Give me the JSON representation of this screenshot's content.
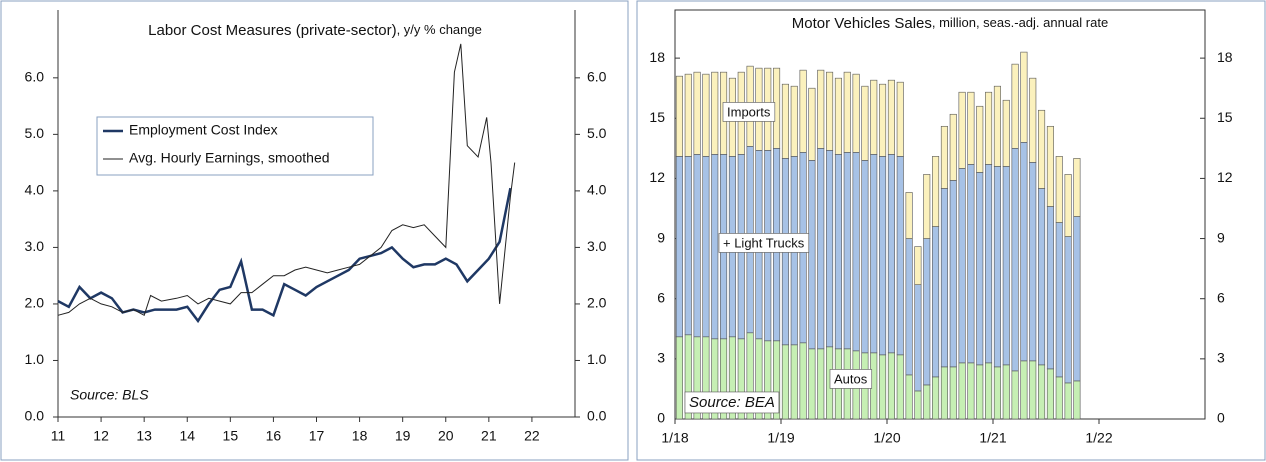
{
  "chart_data": [
    {
      "type": "line",
      "title": "Labor Cost Measures (private-sector)",
      "subtitle": ", y/y % change",
      "annotations": [
        "Source: BLS"
      ],
      "legend": "upper left",
      "xlim": [
        11,
        23
      ],
      "xticks": [
        11,
        12,
        13,
        14,
        15,
        16,
        17,
        18,
        19,
        20,
        21,
        22
      ],
      "ylim": [
        0,
        7.2
      ],
      "yticks": [
        {
          "value": 0,
          "label": "0.0"
        },
        {
          "value": 1,
          "label": "1.0"
        },
        {
          "value": 2,
          "label": "2.0"
        },
        {
          "value": 3,
          "label": "3.0"
        },
        {
          "value": 4,
          "label": "4.0"
        },
        {
          "value": 5,
          "label": "5.0"
        },
        {
          "value": 6,
          "label": "6.0"
        }
      ],
      "y2lim": [
        0,
        7.2
      ],
      "y2ticks": [
        {
          "value": 0,
          "label": "0.0"
        },
        {
          "value": 1,
          "label": "1.0"
        },
        {
          "value": 2,
          "label": "2.0"
        },
        {
          "value": 3,
          "label": "3.0"
        },
        {
          "value": 4,
          "label": "4.0"
        },
        {
          "value": 5,
          "label": "5.0"
        },
        {
          "value": 6,
          "label": "6.0"
        }
      ],
      "series": [
        {
          "name": "Employment Cost Index",
          "color": "#1f3864",
          "width": 2.5,
          "x": [
            11,
            11.25,
            11.5,
            11.75,
            12,
            12.25,
            12.5,
            12.75,
            13,
            13.25,
            13.5,
            13.75,
            14,
            14.25,
            14.5,
            14.75,
            15,
            15.25,
            15.5,
            15.75,
            16,
            16.25,
            16.5,
            16.75,
            17,
            17.25,
            17.5,
            17.75,
            18,
            18.25,
            18.5,
            18.75,
            19,
            19.25,
            19.5,
            19.75,
            20,
            20.25,
            20.5,
            20.75,
            21,
            21.25,
            21.5
          ],
          "values": [
            2.05,
            1.95,
            2.3,
            2.1,
            2.2,
            2.1,
            1.85,
            1.9,
            1.85,
            1.9,
            1.9,
            1.9,
            1.95,
            1.7,
            2.0,
            2.25,
            2.3,
            2.75,
            1.9,
            1.9,
            1.8,
            2.35,
            2.25,
            2.15,
            2.3,
            2.4,
            2.5,
            2.6,
            2.8,
            2.85,
            2.9,
            3.0,
            2.8,
            2.65,
            2.7,
            2.7,
            2.8,
            2.7,
            2.4,
            2.6,
            2.8,
            3.1,
            4.05
          ]
        },
        {
          "name": "Avg. Hourly Earnings, smoothed",
          "color": "#222222",
          "width": 1,
          "x": [
            11,
            11.25,
            11.5,
            11.75,
            12,
            12.25,
            12.5,
            12.75,
            13,
            13.15,
            13.4,
            13.75,
            14,
            14.25,
            14.5,
            14.75,
            15,
            15.25,
            15.5,
            15.75,
            16,
            16.25,
            16.5,
            16.75,
            17,
            17.25,
            17.5,
            17.75,
            18,
            18.5,
            18.75,
            19,
            19.25,
            19.5,
            19.75,
            20,
            20.2,
            20.35,
            20.5,
            20.75,
            20.95,
            21.05,
            21.25,
            21.5,
            21.6
          ],
          "values": [
            1.8,
            1.85,
            2.0,
            2.1,
            2.0,
            1.95,
            1.85,
            1.9,
            1.8,
            2.15,
            2.05,
            2.1,
            2.15,
            2.0,
            2.1,
            2.05,
            2.0,
            2.2,
            2.2,
            2.35,
            2.5,
            2.5,
            2.6,
            2.65,
            2.6,
            2.55,
            2.6,
            2.65,
            2.7,
            3.0,
            3.3,
            3.4,
            3.35,
            3.4,
            3.2,
            3.0,
            6.1,
            6.6,
            4.8,
            4.6,
            5.3,
            4.5,
            2.0,
            3.9,
            4.5
          ]
        }
      ]
    },
    {
      "type": "stacked-bar",
      "title": "Motor Vehicles Sales",
      "subtitle": ", million, seas.-adj. annual rate",
      "annotations": [
        "Imports",
        "+ Light Trucks",
        "Autos",
        "Source: BEA"
      ],
      "categories": [
        "1/18",
        null,
        null,
        null,
        null,
        null,
        null,
        null,
        null,
        null,
        null,
        null,
        "1/19",
        null,
        null,
        null,
        null,
        null,
        null,
        null,
        null,
        null,
        null,
        null,
        "1/20",
        null,
        null,
        null,
        null,
        null,
        null,
        null,
        null,
        null,
        null,
        null,
        "1/21",
        null,
        null,
        null,
        null,
        null,
        null,
        null,
        null,
        null,
        null,
        null,
        "1/22",
        null,
        null,
        null,
        null,
        null,
        null,
        null,
        null,
        null,
        null,
        null
      ],
      "ylim": [
        0,
        20.4
      ],
      "yticks": [
        0,
        3,
        6,
        9,
        12,
        15,
        18
      ],
      "y2lim": [
        0,
        20.4
      ],
      "y2ticks": [
        0,
        3,
        6,
        9,
        12,
        15,
        18
      ],
      "series": [
        {
          "name": "Autos",
          "color": "#c6efb4",
          "values": [
            4.1,
            4.2,
            4.1,
            4.1,
            4.0,
            4.0,
            4.1,
            4.0,
            4.3,
            4.0,
            3.9,
            3.9,
            3.7,
            3.7,
            3.8,
            3.5,
            3.5,
            3.6,
            3.5,
            3.5,
            3.4,
            3.3,
            3.3,
            3.2,
            3.3,
            3.2,
            2.2,
            1.4,
            1.7,
            2.1,
            2.6,
            2.6,
            2.8,
            2.8,
            2.7,
            2.8,
            2.6,
            2.7,
            2.4,
            2.9,
            2.9,
            2.7,
            2.5,
            2.1,
            1.8,
            1.9,
            null,
            null,
            null,
            null,
            null,
            null,
            null,
            null,
            null,
            null,
            null,
            null,
            null,
            null
          ]
        },
        {
          "name": "Light Trucks",
          "color": "#a7c2e6",
          "values": [
            9.0,
            8.9,
            9.1,
            9.0,
            9.2,
            9.2,
            9.0,
            9.2,
            9.3,
            9.4,
            9.5,
            9.6,
            9.3,
            9.4,
            9.5,
            9.4,
            10.0,
            9.8,
            9.7,
            9.8,
            9.9,
            9.6,
            9.9,
            9.9,
            9.9,
            9.9,
            6.8,
            5.3,
            7.3,
            7.5,
            8.9,
            9.3,
            9.7,
            9.9,
            9.6,
            9.9,
            10.0,
            9.9,
            11.1,
            10.9,
            9.9,
            8.8,
            8.1,
            7.7,
            7.3,
            8.2,
            null,
            null,
            null,
            null,
            null,
            null,
            null,
            null,
            null,
            null,
            null,
            null,
            null,
            null
          ]
        },
        {
          "name": "Imports",
          "color": "#fbf1bd",
          "values": [
            4.0,
            4.1,
            4.1,
            4.1,
            4.1,
            4.1,
            3.9,
            4.1,
            4.0,
            4.1,
            4.1,
            4.0,
            3.7,
            3.5,
            4.1,
            3.6,
            3.9,
            3.9,
            3.8,
            4.0,
            3.9,
            3.7,
            3.7,
            3.6,
            3.7,
            3.7,
            2.3,
            1.9,
            3.2,
            3.5,
            3.1,
            3.3,
            3.8,
            3.6,
            3.3,
            3.6,
            4.0,
            3.3,
            4.2,
            4.5,
            4.2,
            3.9,
            4.0,
            3.3,
            3.1,
            2.9,
            null,
            null,
            null,
            null,
            null,
            null,
            null,
            null,
            null,
            null,
            null,
            null,
            null,
            null
          ]
        }
      ]
    }
  ]
}
